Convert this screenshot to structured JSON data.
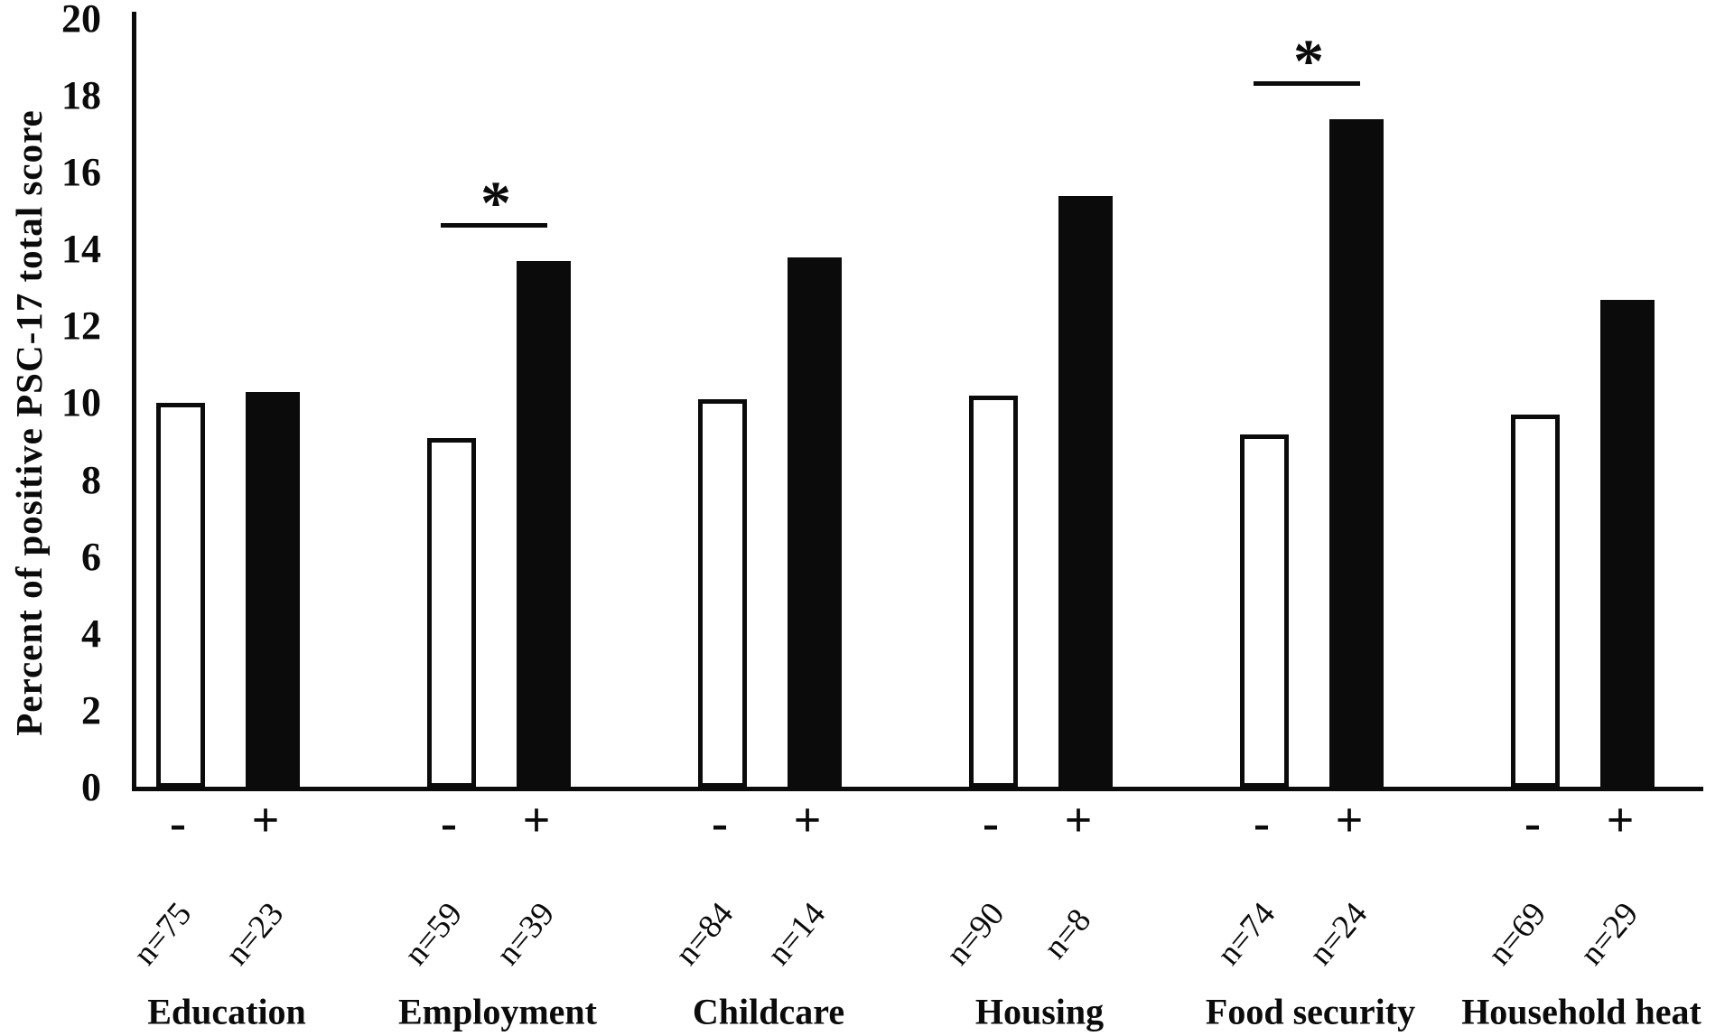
{
  "figure": {
    "background_color": "#ffffff",
    "ink_color": "#0b0b0b"
  },
  "chart_data": {
    "type": "bar",
    "title": "",
    "xlabel": "",
    "ylabel": "Percent of positive PSC-17 total score",
    "ylim": [
      0,
      20
    ],
    "yticks": [
      0,
      2,
      4,
      6,
      8,
      10,
      12,
      14,
      16,
      18,
      20
    ],
    "grid": false,
    "legend_position": "none",
    "bar_encoding": "white outlined bar = '-' group, solid black bar = '+' group",
    "categories": [
      "Education",
      "Employment",
      "Childcare",
      "Housing",
      "Food security",
      "Household heat"
    ],
    "series": [
      {
        "name": "-",
        "style": "white",
        "values": [
          10.0,
          9.1,
          10.1,
          10.2,
          9.2,
          9.7
        ],
        "n_labels": [
          "n=75",
          "n=59",
          "n=84",
          "n=90",
          "n=74",
          "n=69"
        ]
      },
      {
        "name": "+",
        "style": "black",
        "values": [
          10.3,
          13.7,
          13.8,
          15.4,
          17.4,
          12.7
        ],
        "n_labels": [
          "n=23",
          "n=39",
          "n=14",
          "n=8",
          "n=24",
          "n=29"
        ]
      }
    ],
    "significance_markers": [
      {
        "category": "Employment",
        "symbol": "*"
      },
      {
        "category": "Food security",
        "symbol": "*"
      }
    ]
  }
}
